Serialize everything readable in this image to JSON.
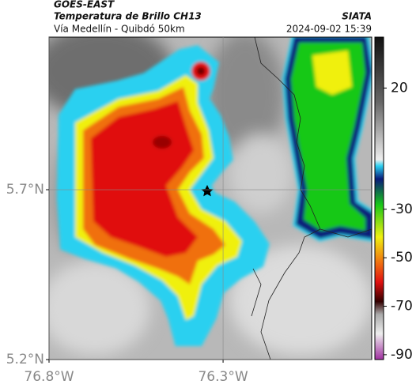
{
  "header": {
    "satellite": "GOES-EAST",
    "product": "Temperatura de Brillo CH13",
    "route": "Vía Medellín - Quibdó 50km",
    "source": "SIATA",
    "timestamp": "2024-09-02 15:39"
  },
  "map": {
    "xlim": [
      -76.8,
      -75.873
    ],
    "ylim": [
      5.2,
      6.149
    ],
    "xticks": [
      {
        "value": -76.8,
        "label": "76.8°W"
      },
      {
        "value": -76.3,
        "label": "76.3°W"
      }
    ],
    "yticks": [
      {
        "value": 5.7,
        "label": "5.7°N"
      },
      {
        "value": 5.2,
        "label": "5.2°N"
      }
    ],
    "grid": true
  },
  "colorbar": {
    "lim": [
      -92,
      41
    ],
    "ticks": [
      20,
      -30,
      -50,
      -70,
      -90
    ]
  }
}
